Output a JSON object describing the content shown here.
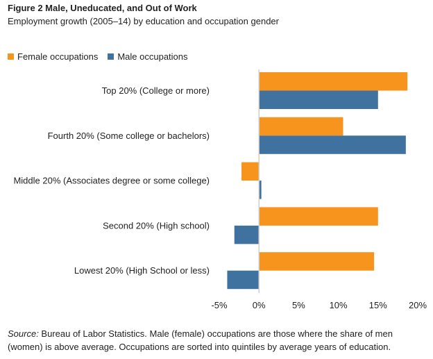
{
  "chart_data": {
    "type": "bar",
    "orientation": "horizontal",
    "title": "Figure 2 Male, Uneducated, and Out of Work",
    "subtitle": "Employment growth (2005–14)  by education and occupation gender",
    "categories": [
      "Top 20% (College or more)",
      "Fourth 20% (Some college or bachelors)",
      "Middle 20% (Associates degree or some college)",
      "Second 20% (High school)",
      "Lowest 20% (High School or less)"
    ],
    "series": [
      {
        "name": "Female occupations",
        "color": "#F7941D",
        "values": [
          18.7,
          10.6,
          -2.2,
          15.0,
          14.5
        ]
      },
      {
        "name": "Male occupations",
        "color": "#3F729F",
        "values": [
          15.0,
          18.5,
          0.3,
          -3.1,
          -4.0
        ]
      }
    ],
    "xlim": [
      -5,
      20
    ],
    "xticks": [
      -5,
      0,
      5,
      10,
      15,
      20
    ],
    "xtick_labels": [
      "-5%",
      "0%",
      "5%",
      "10%",
      "15%",
      "20%"
    ],
    "grid": false,
    "legend_position": "top-left"
  },
  "source": {
    "label": "Source:",
    "text": " Bureau of Labor Statistics. Male (female) occupations are those where the share of men (women) is above average. Occupations are sorted into quintiles by average years of education."
  }
}
